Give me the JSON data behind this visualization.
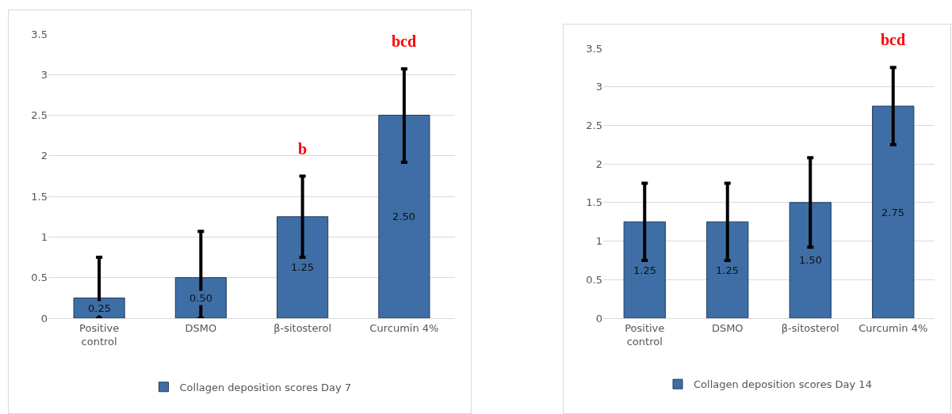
{
  "chart_data": [
    {
      "type": "bar",
      "categories": [
        "Positive control",
        "DSMO",
        "β-sitosterol",
        "Curcumin 4%"
      ],
      "series": [
        {
          "name": "Collagen deposition scores Day 7",
          "color": "#3f6ea6",
          "values": [
            0.25,
            0.5,
            1.25,
            2.5
          ],
          "errors": [
            [
              0,
              0.75
            ],
            [
              0,
              1.07
            ],
            0.5,
            [
              1.92,
              3.07
            ]
          ],
          "value_labels": [
            "0.25",
            "0.50",
            "1.25",
            "2.50"
          ]
        }
      ],
      "ylim": [
        0,
        3.5
      ],
      "yticks": [
        0,
        0.5,
        1,
        1.5,
        2,
        2.5,
        3,
        3.5
      ],
      "grid": "y",
      "legend": "bottom",
      "annotations": [
        "b",
        "bcd"
      ]
    },
    {
      "type": "bar",
      "categories": [
        "Positive control",
        "DSMO",
        "β-sitosterol",
        "Curcumin 4%"
      ],
      "series": [
        {
          "name": "Collagen deposition scores Day 14",
          "color": "#3f6ea6",
          "values": [
            1.25,
            1.25,
            1.5,
            2.75
          ],
          "errors": [
            0.5,
            0.5,
            [
              0.92,
              2.08
            ],
            0.5
          ],
          "value_labels": [
            "1.25",
            "1.25",
            "1.50",
            "2.75"
          ]
        }
      ],
      "ylim": [
        0,
        3.5
      ],
      "yticks": [
        0,
        0.5,
        1,
        1.5,
        2,
        2.5,
        3,
        3.5
      ],
      "grid": "y",
      "legend": "bottom",
      "annotations": [
        "bcd"
      ]
    }
  ]
}
